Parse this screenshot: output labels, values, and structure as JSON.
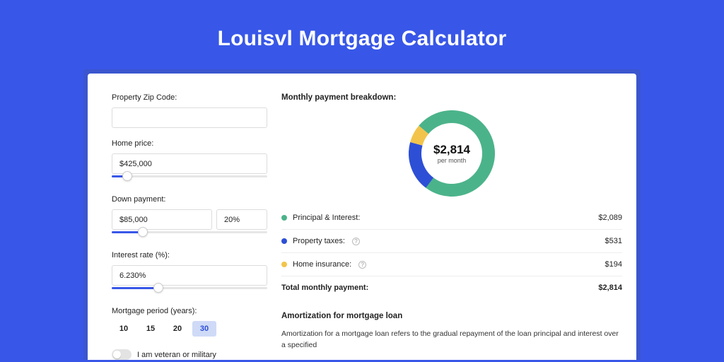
{
  "page": {
    "title": "Louisvl Mortgage Calculator",
    "background_color": "#3857e8",
    "inner_border_color": "#3b56cf"
  },
  "form": {
    "zip": {
      "label": "Property Zip Code:",
      "value": ""
    },
    "home_price": {
      "label": "Home price:",
      "value": "$425,000",
      "slider_pct": 10
    },
    "down_payment": {
      "label": "Down payment:",
      "value": "$85,000",
      "pct_value": "20%",
      "slider_pct": 20
    },
    "interest_rate": {
      "label": "Interest rate (%):",
      "value": "6.230%",
      "slider_pct": 30
    },
    "period": {
      "label": "Mortgage period (years):",
      "options": [
        "10",
        "15",
        "20",
        "30"
      ],
      "selected_index": 3,
      "pill_active_bg": "#cfdaf7",
      "pill_active_color": "#2d4fd6"
    },
    "veteran": {
      "label": "I am veteran or military",
      "checked": false
    }
  },
  "breakdown": {
    "title": "Monthly payment breakdown:",
    "donut": {
      "amount": "$2,814",
      "sub": "per month",
      "stroke_width": 18,
      "radius": 52,
      "segments": [
        {
          "key": "principal_interest",
          "label": "Principal & Interest:",
          "value": "$2,089",
          "color": "#4bb38a",
          "pct": 74.2
        },
        {
          "key": "property_taxes",
          "label": "Property taxes:",
          "value": "$531",
          "color": "#2d4fd6",
          "pct": 18.9,
          "has_info": true
        },
        {
          "key": "home_insurance",
          "label": "Home insurance:",
          "value": "$194",
          "color": "#f2c44b",
          "pct": 6.9,
          "has_info": true
        }
      ],
      "gap_deg": 0,
      "start_angle_deg": -140
    },
    "total": {
      "label": "Total monthly payment:",
      "value": "$2,814"
    }
  },
  "amortization": {
    "title": "Amortization for mortgage loan",
    "text": "Amortization for a mortgage loan refers to the gradual repayment of the loan principal and interest over a specified"
  }
}
